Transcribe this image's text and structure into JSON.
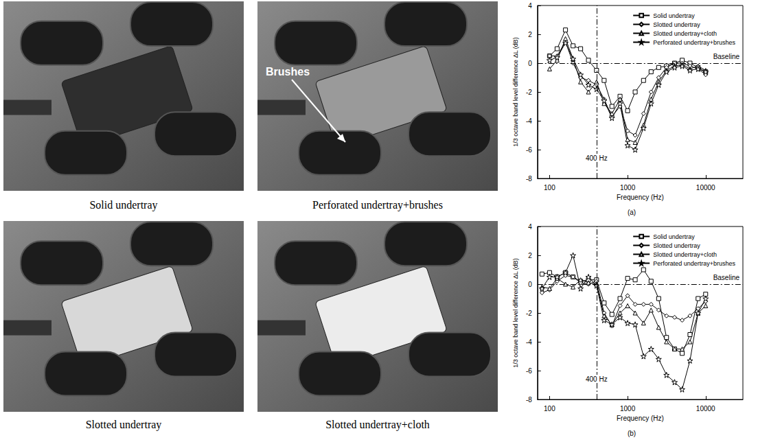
{
  "photos": [
    {
      "caption": "Solid undertray"
    },
    {
      "caption": "Perforated undertray+brushes",
      "annotation": "Brushes"
    },
    {
      "caption": "Slotted undertray"
    },
    {
      "caption": "Slotted undertray+cloth"
    }
  ],
  "chart_data": [
    {
      "type": "line",
      "label": "(a)",
      "x_label": "Frequency (Hz)",
      "y_label": "1/3 octave band level difference ΔL (dB)",
      "log": "x",
      "xlim": [
        70,
        30000
      ],
      "xticks": [
        100,
        1000,
        10000
      ],
      "ylim": [
        -8,
        4
      ],
      "yticks": [
        -8,
        -6,
        -4,
        -2,
        0,
        2,
        4
      ],
      "grid": false,
      "legend": "upper right",
      "x": [
        100,
        125,
        160,
        200,
        250,
        315,
        400,
        500,
        630,
        800,
        1000,
        1250,
        1600,
        2000,
        2500,
        3150,
        4000,
        5000,
        6300,
        8000,
        10000
      ],
      "series": [
        {
          "name": "Solid undertray",
          "color": "#000000",
          "marker": "square",
          "values": [
            0.5,
            1.0,
            2.3,
            1.2,
            1.0,
            0.2,
            -0.5,
            -1.2,
            -3.0,
            -2.3,
            -3.3,
            -2.0,
            -1.2,
            -0.6,
            -0.3,
            -0.2,
            0.0,
            0.2,
            0.0,
            -0.3,
            -0.6
          ]
        },
        {
          "name": "Slotted undertray",
          "color": "#000000",
          "marker": "diamond",
          "values": [
            0.5,
            0.5,
            1.5,
            0.0,
            -1.0,
            -1.2,
            -1.5,
            -2.5,
            -3.7,
            -3.0,
            -4.7,
            -5.0,
            -3.5,
            -2.0,
            -1.0,
            -0.3,
            0.0,
            0.0,
            -0.2,
            -0.4,
            -0.8
          ]
        },
        {
          "name": "Slotted undertray+cloth",
          "color": "#000000",
          "marker": "triangle",
          "values": [
            -0.4,
            0.2,
            1.7,
            0.3,
            -1.3,
            -2.0,
            -1.3,
            -2.8,
            -3.5,
            -2.5,
            -5.3,
            -5.5,
            -4.3,
            -2.5,
            -1.3,
            -0.5,
            -0.2,
            -0.1,
            -0.4,
            -0.2,
            -0.5
          ]
        },
        {
          "name": "Perforated undertray+brushes",
          "color": "#000000",
          "marker": "star",
          "values": [
            0.2,
            0.4,
            1.4,
            0.3,
            -0.8,
            -1.5,
            -1.8,
            -2.6,
            -3.8,
            -2.8,
            -5.7,
            -6.0,
            -4.5,
            -2.8,
            -1.5,
            -0.6,
            -0.3,
            -0.2,
            -0.5,
            -0.4,
            -0.6
          ]
        }
      ],
      "reference_lines": [
        {
          "axis": "x",
          "value": 400,
          "label": "400 Hz"
        },
        {
          "axis": "y",
          "value": 0,
          "label": "Baseline"
        }
      ]
    },
    {
      "type": "line",
      "label": "(b)",
      "x_label": "Frequency (Hz)",
      "y_label": "1/3 octave band level difference ΔL (dB)",
      "log": "x",
      "xlim": [
        70,
        30000
      ],
      "xticks": [
        100,
        1000,
        10000
      ],
      "ylim": [
        -8,
        4
      ],
      "yticks": [
        -8,
        -6,
        -4,
        -2,
        0,
        2,
        4
      ],
      "grid": false,
      "legend": "upper right",
      "x": [
        80,
        100,
        125,
        160,
        200,
        250,
        315,
        400,
        500,
        630,
        800,
        1000,
        1250,
        1600,
        2000,
        2500,
        3150,
        4000,
        5000,
        6300,
        8000,
        10000
      ],
      "series": [
        {
          "name": "Solid undertray",
          "color": "#000000",
          "marker": "square",
          "values": [
            0.7,
            0.8,
            0.5,
            0.8,
            0.5,
            0.2,
            0.3,
            0.3,
            -1.3,
            -2.1,
            -1.0,
            0.4,
            0.3,
            1.0,
            0.2,
            -1.0,
            -3.7,
            -4.5,
            -4.8,
            -3.5,
            -1.0,
            -0.7
          ]
        },
        {
          "name": "Slotted undertray",
          "color": "#000000",
          "marker": "diamond",
          "values": [
            -0.6,
            -0.4,
            0.2,
            0.6,
            0.5,
            0.1,
            0.0,
            0.2,
            -2.0,
            -2.9,
            -1.5,
            -0.8,
            -1.4,
            -1.4,
            -1.4,
            -1.8,
            -2.2,
            -2.3,
            -2.5,
            -2.2,
            -1.7,
            -1.2
          ]
        },
        {
          "name": "Slotted undertray+cloth",
          "color": "#000000",
          "marker": "triangle",
          "values": [
            -0.2,
            -0.3,
            0.4,
            0.0,
            -0.2,
            0.3,
            0.1,
            0.0,
            -2.2,
            -2.8,
            -2.0,
            -1.5,
            -2.0,
            -2.7,
            -1.8,
            -3.0,
            -4.0,
            -4.5,
            -4.5,
            -4.0,
            -2.0,
            -1.5
          ]
        },
        {
          "name": "Perforated undertray+brushes",
          "color": "#000000",
          "marker": "star",
          "values": [
            -0.3,
            0.5,
            0.5,
            0.8,
            2.0,
            -0.3,
            0.5,
            -0.1,
            -2.5,
            -2.8,
            -2.3,
            -2.7,
            -2.8,
            -5.0,
            -4.5,
            -5.2,
            -6.3,
            -6.8,
            -7.3,
            -5.3,
            -2.0,
            -1.0
          ]
        }
      ],
      "reference_lines": [
        {
          "axis": "x",
          "value": 400,
          "label": "400 Hz"
        },
        {
          "axis": "y",
          "value": 0,
          "label": "Baseline"
        }
      ]
    }
  ]
}
